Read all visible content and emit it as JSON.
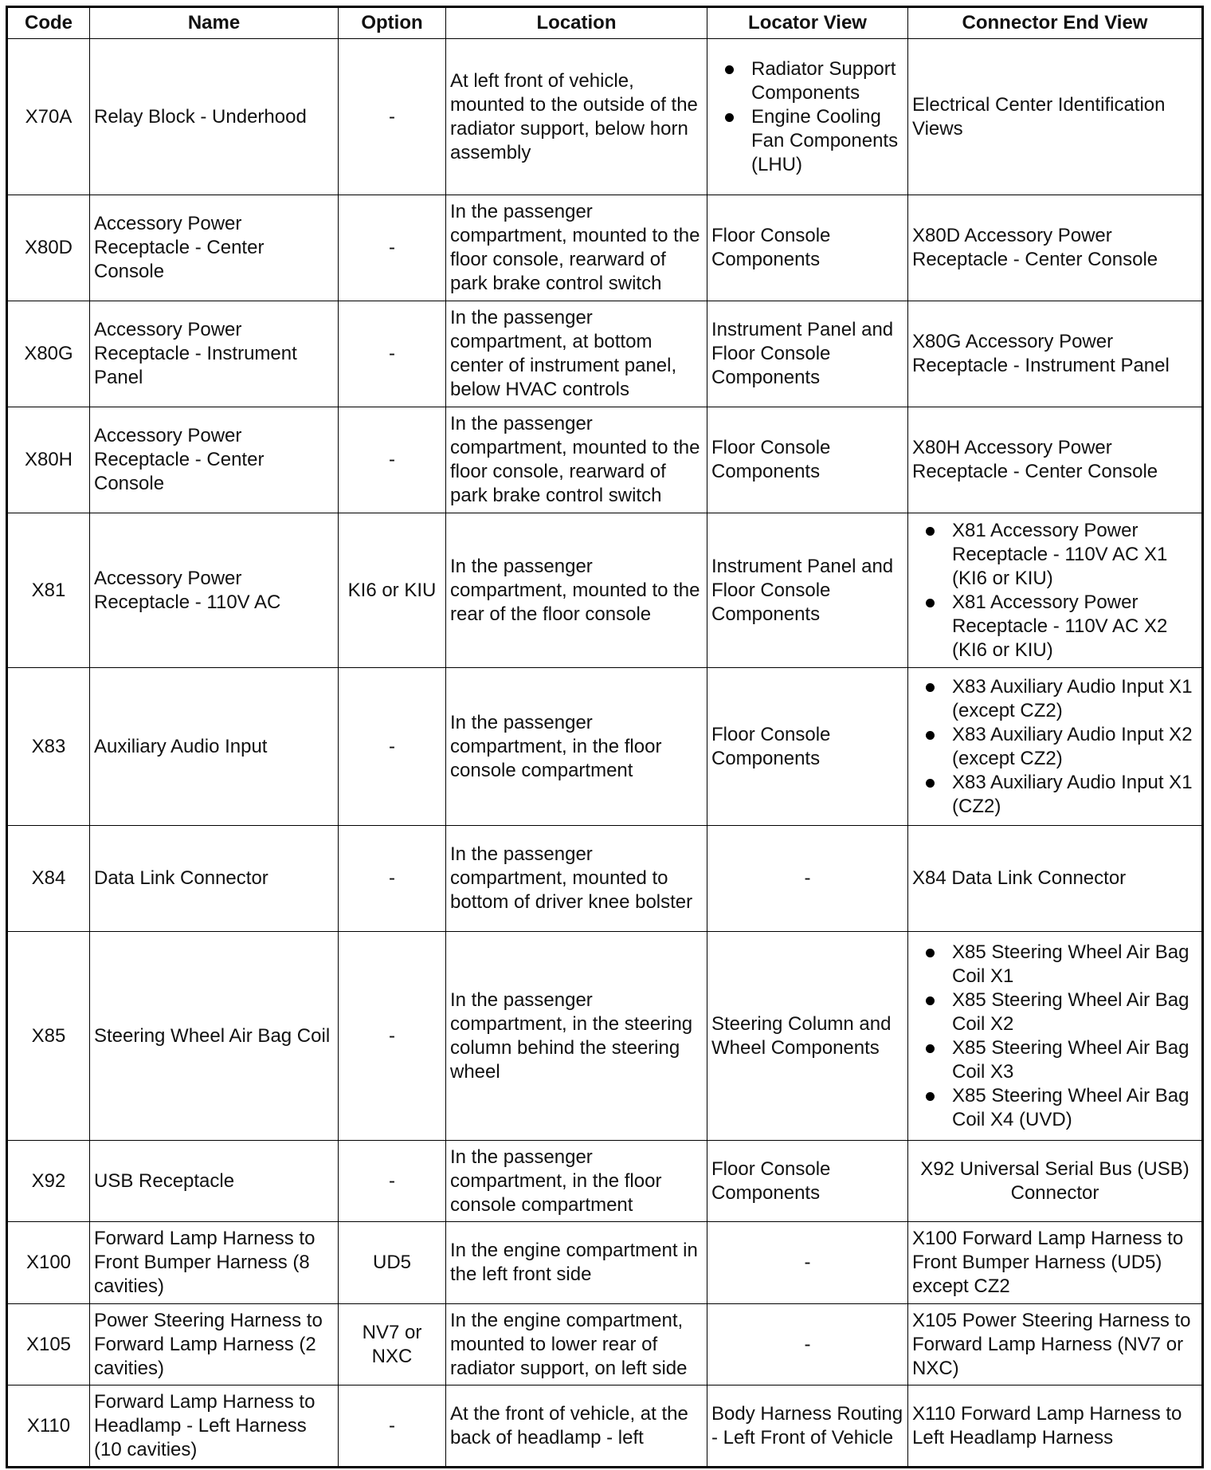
{
  "headers": [
    "Code",
    "Name",
    "Option",
    "Location",
    "Locator View",
    "Connector End View"
  ],
  "rows": [
    {
      "code": "X70A",
      "name": "Relay Block - Underhood",
      "option": "-",
      "location": "At left front of vehicle, mounted to the outside of the radiator support, below horn assembly",
      "locator": [
        "Radiator Support Components",
        "Engine Cooling Fan Components (LHU)"
      ],
      "connector": "Electrical Center Identification Views"
    },
    {
      "code": "X80D",
      "name": "Accessory Power Receptacle - Center Console",
      "option": "-",
      "location": "In the passenger compartment, mounted to the floor console, rearward of park brake control switch",
      "locator": "Floor Console Components",
      "connector": "X80D Accessory Power Receptacle - Center Console"
    },
    {
      "code": "X80G",
      "name": "Accessory Power Receptacle - Instrument Panel",
      "option": "-",
      "location": "In the passenger compartment, at bottom center of instrument panel, below HVAC controls",
      "locator": "Instrument Panel and Floor Console Components",
      "connector": "X80G Accessory Power Receptacle - Instrument Panel"
    },
    {
      "code": "X80H",
      "name": "Accessory Power Receptacle - Center Console",
      "option": "-",
      "location": "In the passenger compartment, mounted to the floor console, rearward of park brake control switch",
      "locator": "Floor Console Components",
      "connector": "X80H Accessory Power Receptacle - Center Console"
    },
    {
      "code": "X81",
      "name": "Accessory Power Receptacle - 110V AC",
      "option": "KI6 or KIU",
      "location": "In the passenger compartment, mounted to the rear of the floor console",
      "locator": "Instrument Panel and Floor Console Components",
      "connector": [
        "X81 Accessory Power Receptacle - 110V AC X1 (KI6 or KIU)",
        "X81 Accessory Power Receptacle - 110V AC X2 (KI6 or KIU)"
      ]
    },
    {
      "code": "X83",
      "name": "Auxiliary Audio Input",
      "option": "-",
      "location": "In the passenger compartment, in the floor console compartment",
      "locator": "Floor Console Components",
      "connector": [
        "X83 Auxiliary Audio Input X1 (except CZ2)",
        "X83 Auxiliary Audio Input X2 (except CZ2)",
        "X83 Auxiliary Audio Input X1 (CZ2)"
      ]
    },
    {
      "code": "X84",
      "name": "Data Link Connector",
      "option": "-",
      "location": "In the passenger compartment, mounted to bottom of driver knee bolster",
      "locator": "-",
      "connector": "X84 Data Link Connector"
    },
    {
      "code": "X85",
      "name": "Steering Wheel Air Bag Coil",
      "option": "-",
      "location": "In the passenger compartment, in the steering column behind the steering wheel",
      "locator": "Steering Column and Wheel Components",
      "connector": [
        "X85 Steering Wheel Air Bag Coil X1",
        "X85 Steering Wheel Air Bag Coil X2",
        "X85 Steering Wheel Air Bag Coil X3",
        "X85 Steering Wheel Air Bag Coil X4 (UVD)"
      ]
    },
    {
      "code": "X92",
      "name": "USB Receptacle",
      "option": "-",
      "location": "In the passenger compartment, in the floor console compartment",
      "locator": "Floor Console Components",
      "connector": "X92 Universal Serial Bus (USB) Connector"
    },
    {
      "code": "X100",
      "name": "Forward Lamp Harness to Front Bumper Harness (8 cavities)",
      "option": "UD5",
      "location": "In the engine compartment in the left front side",
      "locator": "-",
      "connector": "X100 Forward Lamp Harness to Front Bumper Harness (UD5) except CZ2"
    },
    {
      "code": "X105",
      "name": "Power Steering Harness to Forward Lamp Harness (2 cavities)",
      "option": "NV7 or NXC",
      "location": "In the engine compartment, mounted to lower rear of radiator support, on left side",
      "locator": "-",
      "connector": "X105 Power Steering Harness to Forward Lamp Harness (NV7 or NXC)"
    },
    {
      "code": "X110",
      "name": "Forward Lamp Harness to Headlamp - Left Harness (10 cavities)",
      "option": "-",
      "location": "At the front of vehicle, at the back of headlamp - left",
      "locator": "Body Harness Routing - Left Front of Vehicle",
      "connector": "X110 Forward Lamp Harness to Left Headlamp Harness"
    }
  ]
}
